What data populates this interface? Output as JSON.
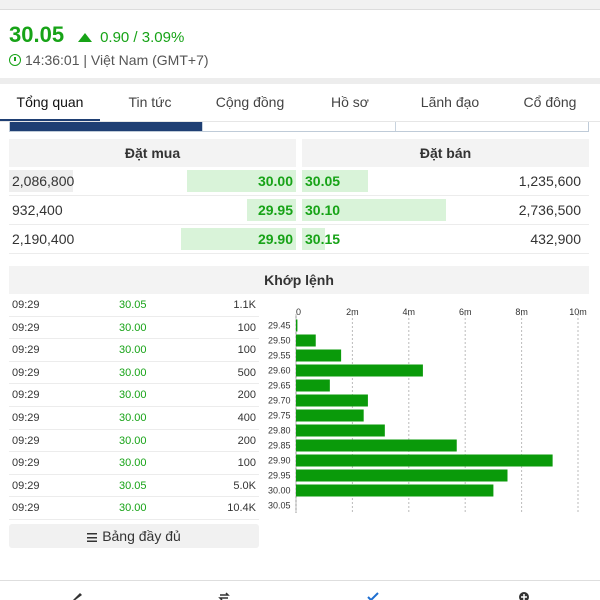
{
  "quote": {
    "price": "30.05",
    "change": "0.90 / 3.09%",
    "time": "14:36:01 | Việt Nam (GMT+7)"
  },
  "tabs": [
    "Tổng quan",
    "Tin tức",
    "Cộng đồng",
    "Hồ sơ",
    "Lãnh đạo",
    "Cổ đông"
  ],
  "active_tab": 0,
  "orderbook": {
    "bid_title": "Đặt mua",
    "ask_title": "Đặt bán",
    "bids": [
      {
        "volume": "2,086,800",
        "price": "30.00",
        "fill": 0.38
      },
      {
        "volume": "932,400",
        "price": "29.95",
        "fill": 0.17
      },
      {
        "volume": "2,190,400",
        "price": "29.90",
        "fill": 0.4
      }
    ],
    "asks": [
      {
        "price": "30.05",
        "volume": "1,235,600",
        "fill": 0.23
      },
      {
        "price": "30.10",
        "volume": "2,736,500",
        "fill": 0.5
      },
      {
        "price": "30.15",
        "volume": "432,900",
        "fill": 0.08
      }
    ]
  },
  "match": {
    "title": "Khớp lệnh",
    "trades": [
      {
        "time": "09:29",
        "price": "30.05",
        "volume": "1.1K"
      },
      {
        "time": "09:29",
        "price": "30.00",
        "volume": "100"
      },
      {
        "time": "09:29",
        "price": "30.00",
        "volume": "100"
      },
      {
        "time": "09:29",
        "price": "30.00",
        "volume": "500"
      },
      {
        "time": "09:29",
        "price": "30.00",
        "volume": "200"
      },
      {
        "time": "09:29",
        "price": "30.00",
        "volume": "400"
      },
      {
        "time": "09:29",
        "price": "30.00",
        "volume": "200"
      },
      {
        "time": "09:29",
        "price": "30.00",
        "volume": "100"
      },
      {
        "time": "09:29",
        "price": "30.05",
        "volume": "5.0K"
      },
      {
        "time": "09:29",
        "price": "30.00",
        "volume": "10.4K"
      }
    ],
    "full_button": "Bảng đầy đủ"
  },
  "chart_data": {
    "type": "bar",
    "orientation": "horizontal",
    "categories": [
      "29.45",
      "29.50",
      "29.55",
      "29.60",
      "29.65",
      "29.70",
      "29.75",
      "29.80",
      "29.85",
      "29.90",
      "29.95",
      "30.00",
      "30.05"
    ],
    "values": [
      0.05,
      0.7,
      1.6,
      4.5,
      1.2,
      2.55,
      2.4,
      3.15,
      5.7,
      9.1,
      7.5,
      7.0,
      0
    ],
    "x_ticks": [
      "0",
      "2m",
      "4m",
      "6m",
      "8m",
      "10m"
    ],
    "xlim": [
      0,
      10
    ],
    "grid": true,
    "color": "#0a9a0a"
  },
  "colors": {
    "accent": "#17a317",
    "tab_indicator": "#1f3f73",
    "bar": "#0a9a0a",
    "bar_light": "#d9f3d9"
  }
}
